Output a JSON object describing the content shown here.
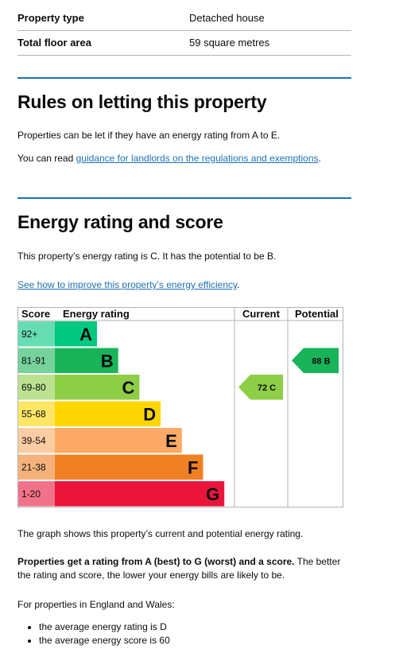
{
  "summary": [
    {
      "key": "Property type",
      "value": "Detached house"
    },
    {
      "key": "Total floor area",
      "value": "59 square metres"
    }
  ],
  "letting": {
    "heading": "Rules on letting this property",
    "p1": "Properties can be let if they have an energy rating from A to E.",
    "p2_prefix": "You can read ",
    "p2_link": "guidance for landlords on the regulations and exemptions",
    "p2_suffix": "."
  },
  "energy": {
    "heading": "Energy rating and score",
    "p1": "This property’s energy rating is C. It has the potential to be B.",
    "improve_link": "See how to improve this property’s energy efficiency",
    "improve_suffix": "."
  },
  "chart_data": {
    "type": "bar",
    "headers": {
      "score": "Score",
      "rating": "Energy rating",
      "current": "Current",
      "potential": "Potential"
    },
    "bands": [
      {
        "range": "92+",
        "letter": "A",
        "color": "#00c781"
      },
      {
        "range": "81-91",
        "letter": "B",
        "color": "#19b459"
      },
      {
        "range": "69-80",
        "letter": "C",
        "color": "#8dce46"
      },
      {
        "range": "55-68",
        "letter": "D",
        "color": "#ffd500"
      },
      {
        "range": "39-54",
        "letter": "E",
        "color": "#fcaa65"
      },
      {
        "range": "21-38",
        "letter": "F",
        "color": "#ef8023"
      },
      {
        "range": "1-20",
        "letter": "G",
        "color": "#e9153b"
      }
    ],
    "current": {
      "score": 72,
      "letter": "C",
      "label": "72 C",
      "color": "#8dce46"
    },
    "potential": {
      "score": 88,
      "letter": "B",
      "label": "88 B",
      "color": "#19b459"
    }
  },
  "after": {
    "graph_note": "The graph shows this property’s current and potential energy rating.",
    "bold_text": "Properties get a rating from A (best) to G (worst) and a score.",
    "rest_text": " The better the rating and score, the lower your energy bills are likely to be.",
    "england_wales": "For properties in England and Wales:",
    "bullets": [
      "the average energy rating is D",
      "the average energy score is 60"
    ]
  }
}
